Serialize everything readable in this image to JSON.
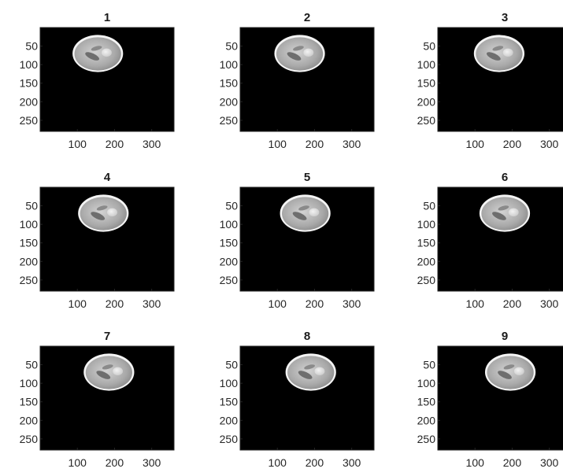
{
  "figure": {
    "background": "#ffffff",
    "panel_background": "#000000",
    "axis_color": "#262626",
    "subplots": [
      {
        "title": "1",
        "center_x": 155,
        "center_y": 70
      },
      {
        "title": "2",
        "center_x": 160,
        "center_y": 70
      },
      {
        "title": "3",
        "center_x": 165,
        "center_y": 70
      },
      {
        "title": "4",
        "center_x": 170,
        "center_y": 70
      },
      {
        "title": "5",
        "center_x": 175,
        "center_y": 70
      },
      {
        "title": "6",
        "center_x": 180,
        "center_y": 70
      },
      {
        "title": "7",
        "center_x": 185,
        "center_y": 70
      },
      {
        "title": "8",
        "center_x": 190,
        "center_y": 70
      },
      {
        "title": "9",
        "center_x": 195,
        "center_y": 70
      }
    ],
    "image_size": {
      "width": 360,
      "height": 280
    },
    "xticks": [
      100,
      200,
      300
    ],
    "yticks": [
      50,
      100,
      150,
      200,
      250
    ],
    "ellipse_radius": {
      "rx": 68,
      "ry": 50
    }
  }
}
